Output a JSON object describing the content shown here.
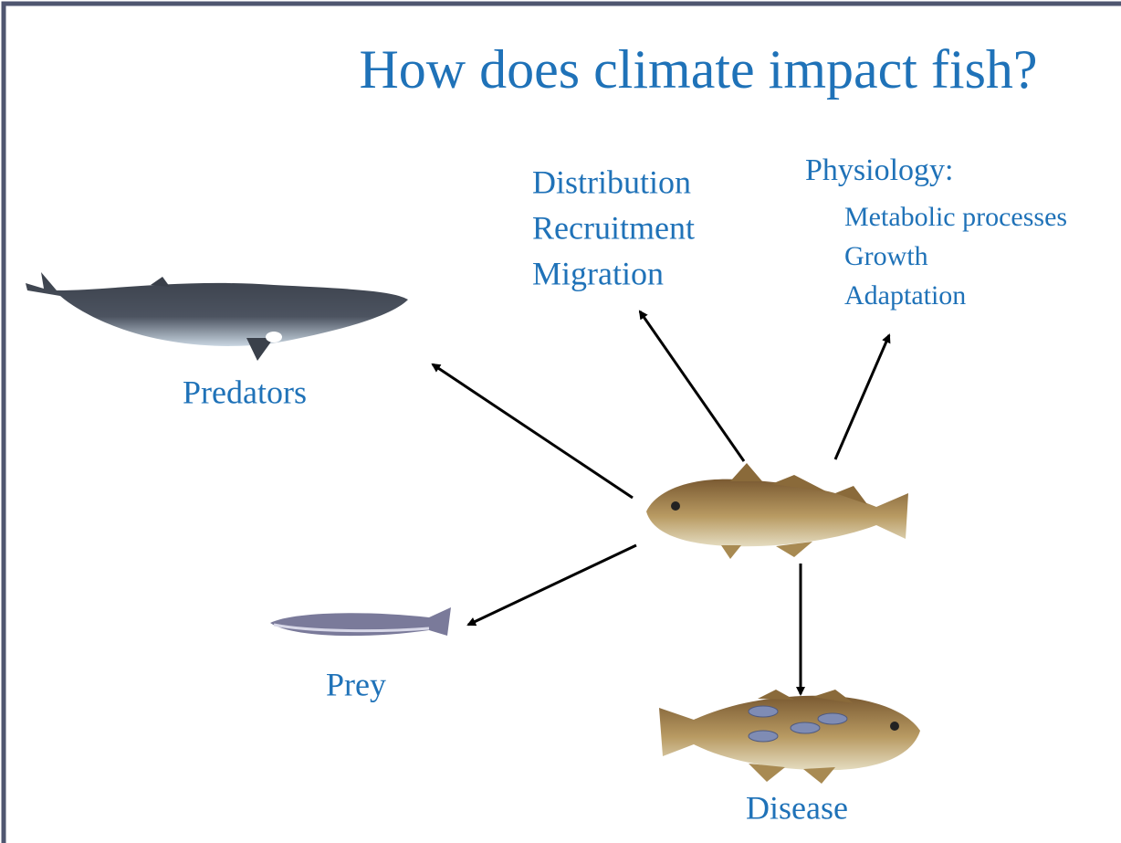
{
  "title": "How does climate impact fish?",
  "effects": [
    "Distribution",
    "Recruitment",
    "Migration"
  ],
  "physiology": {
    "label": "Physiology:",
    "items": [
      "Metabolic processes",
      "Growth",
      "Adaptation"
    ]
  },
  "predators": "Predators",
  "prey": "Prey",
  "disease": "Disease"
}
